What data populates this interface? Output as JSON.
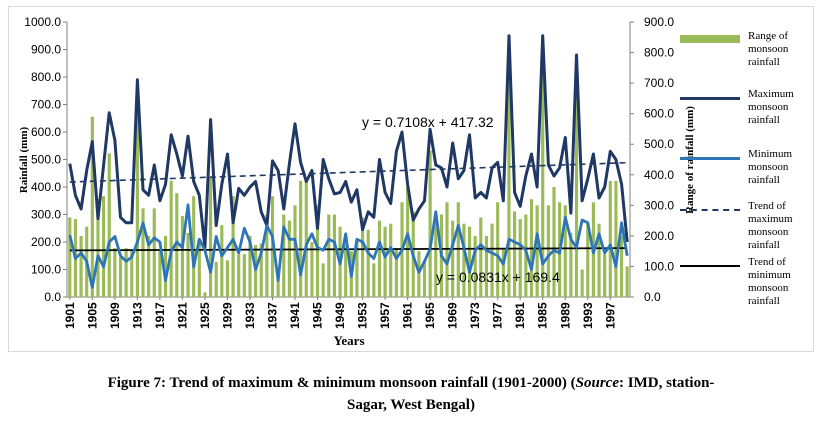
{
  "chart_data": {
    "type": "line",
    "xlabel": "Years",
    "ylabel_left": "Rainfall (mm)",
    "ylabel_right": "Range of rainfall (mm)",
    "ylim_left": [
      0,
      1000
    ],
    "ylim_right": [
      0,
      900
    ],
    "yticks_left": [
      "0.0",
      "100.0",
      "200.0",
      "300.0",
      "400.0",
      "500.0",
      "600.0",
      "700.0",
      "800.0",
      "900.0",
      "1000.0"
    ],
    "yticks_right": [
      "0.0",
      "100.0",
      "200.0",
      "300.0",
      "400.0",
      "500.0",
      "600.0",
      "700.0",
      "800.0",
      "900.0"
    ],
    "x": [
      1901,
      1902,
      1903,
      1904,
      1905,
      1906,
      1907,
      1908,
      1909,
      1910,
      1911,
      1912,
      1913,
      1914,
      1915,
      1916,
      1917,
      1918,
      1919,
      1920,
      1921,
      1922,
      1923,
      1924,
      1925,
      1926,
      1927,
      1928,
      1929,
      1930,
      1931,
      1932,
      1933,
      1934,
      1935,
      1936,
      1937,
      1938,
      1939,
      1940,
      1941,
      1942,
      1943,
      1944,
      1945,
      1946,
      1947,
      1948,
      1949,
      1950,
      1951,
      1952,
      1953,
      1954,
      1955,
      1956,
      1957,
      1958,
      1959,
      1960,
      1961,
      1962,
      1963,
      1964,
      1965,
      1966,
      1967,
      1968,
      1969,
      1970,
      1971,
      1972,
      1973,
      1974,
      1975,
      1976,
      1977,
      1978,
      1979,
      1980,
      1981,
      1982,
      1983,
      1984,
      1985,
      1986,
      1987,
      1988,
      1989,
      1990,
      1991,
      1992,
      1993,
      1994,
      1995,
      1996,
      1997,
      1998,
      1999,
      2000
    ],
    "xtick_labels": [
      "1901",
      "1905",
      "1909",
      "1913",
      "1917",
      "1921",
      "1925",
      "1929",
      "1933",
      "1937",
      "1941",
      "1945",
      "1949",
      "1953",
      "1957",
      "1961",
      "1965",
      "1969",
      "1973",
      "1977",
      "1981",
      "1985",
      "1989",
      "1993",
      "1997"
    ],
    "series": [
      {
        "name": "Range of monsoon rainfall",
        "kind": "bar",
        "axis": "right",
        "color": "#9bbb59",
        "values": [
          260,
          255,
          200,
          230,
          590,
          320,
          330,
          470,
          160,
          130,
          160,
          150,
          610,
          290,
          200,
          290,
          150,
          200,
          380,
          340,
          265,
          210,
          330,
          190,
          15,
          390,
          115,
          235,
          120,
          330,
          140,
          140,
          200,
          170,
          175,
          270,
          330,
          90,
          270,
          250,
          300,
          380,
          390,
          180,
          300,
          110,
          270,
          270,
          230,
          170,
          150,
          180,
          260,
          220,
          110,
          250,
          230,
          240,
          160,
          310,
          360,
          280,
          150,
          120,
          480,
          270,
          270,
          310,
          250,
          310,
          240,
          230,
          200,
          260,
          200,
          240,
          310,
          160,
          740,
          280,
          255,
          270,
          320,
          300,
          730,
          300,
          360,
          310,
          300,
          210,
          700,
          90,
          240,
          310,
          240,
          140,
          380,
          380,
          200,
          100
        ]
      },
      {
        "name": "Maximum monsoon rainfall",
        "kind": "line",
        "axis": "left",
        "color": "#1f3864",
        "values": [
          485,
          370,
          320,
          460,
          565,
          285,
          480,
          670,
          570,
          290,
          270,
          270,
          790,
          390,
          370,
          480,
          350,
          410,
          590,
          520,
          440,
          585,
          420,
          370,
          180,
          645,
          260,
          410,
          520,
          270,
          395,
          370,
          400,
          420,
          310,
          260,
          495,
          460,
          320,
          485,
          630,
          490,
          420,
          460,
          250,
          500,
          430,
          375,
          380,
          420,
          345,
          390,
          245,
          310,
          290,
          500,
          380,
          340,
          530,
          600,
          410,
          280,
          320,
          350,
          610,
          480,
          470,
          400,
          560,
          430,
          460,
          590,
          360,
          380,
          360,
          470,
          490,
          350,
          950,
          380,
          330,
          440,
          520,
          400,
          950,
          480,
          440,
          470,
          580,
          305,
          880,
          350,
          430,
          520,
          360,
          400,
          530,
          500,
          410,
          200
        ]
      },
      {
        "name": "Minimum monsoon rainfall",
        "kind": "line",
        "axis": "left",
        "color": "#2e75b6",
        "values": [
          225,
          140,
          160,
          130,
          35,
          150,
          110,
          200,
          220,
          150,
          130,
          145,
          200,
          270,
          190,
          215,
          200,
          60,
          165,
          200,
          180,
          335,
          110,
          210,
          170,
          90,
          220,
          150,
          180,
          210,
          160,
          250,
          200,
          100,
          160,
          260,
          220,
          60,
          255,
          210,
          210,
          80,
          190,
          230,
          180,
          170,
          210,
          200,
          120,
          230,
          75,
          210,
          200,
          160,
          140,
          200,
          145,
          180,
          140,
          170,
          230,
          150,
          90,
          130,
          175,
          310,
          150,
          120,
          190,
          260,
          180,
          90,
          170,
          190,
          170,
          160,
          150,
          120,
          210,
          200,
          190,
          170,
          100,
          230,
          120,
          150,
          170,
          160,
          290,
          210,
          180,
          280,
          270,
          160,
          230,
          160,
          190,
          110,
          270,
          150
        ]
      },
      {
        "name": "Trend of maximum monsoon rainfall",
        "kind": "trend",
        "axis": "left",
        "color": "#1f3864",
        "slope": 0.7108,
        "intercept": 417.32
      },
      {
        "name": "Trend of minimum monsoon rainfall",
        "kind": "trend",
        "axis": "left",
        "color": "#000000",
        "slope": 0.0831,
        "intercept": 169.4
      }
    ],
    "annotations": [
      "y = 0.7108x + 417.32",
      "y = 0.0831x + 169.4"
    ]
  },
  "legend": [
    {
      "label": "Range of monsoon rainfall",
      "lines": [
        "Range of",
        "monsoon",
        "rainfall"
      ],
      "style": "bar",
      "color": "#9bbb59"
    },
    {
      "label": "Maximum monsoon rainfall",
      "lines": [
        "Maximum",
        "monsoon",
        "rainfall"
      ],
      "style": "thick",
      "color": "#1f3864"
    },
    {
      "label": "Minimum monsoon rainfall",
      "lines": [
        "Minimum",
        "monsoon",
        "rainfall"
      ],
      "style": "thick",
      "color": "#2e75b6"
    },
    {
      "label": "Trend of maximum monsoon rainfall",
      "lines": [
        "Trend of",
        "maximum",
        "monsoon",
        "rainfall"
      ],
      "style": "dashed",
      "color": "#1f3864"
    },
    {
      "label": "Trend of minimum monsoon rainfall",
      "lines": [
        "Trend of",
        "minimum",
        "monsoon",
        "rainfall"
      ],
      "style": "solid",
      "color": "#000000"
    }
  ],
  "caption": {
    "main": "Figure 7: Trend of maximum & minimum monsoon rainfall (1901-2000)",
    "source_label": "Source",
    "source_rest": ": IMD, station-",
    "line2": "Sagar, West Bengal)"
  }
}
